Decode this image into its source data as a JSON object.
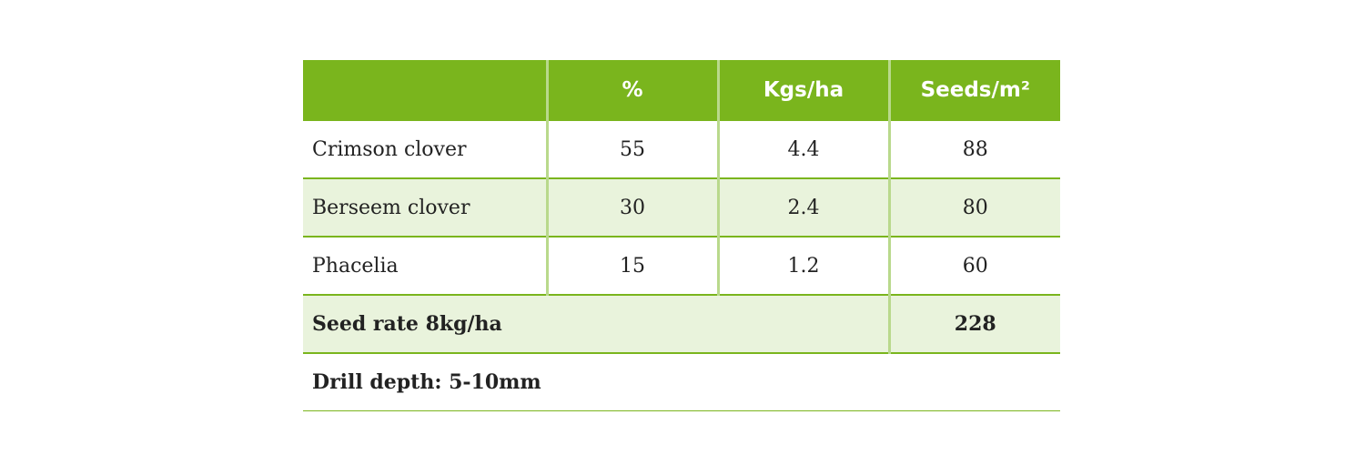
{
  "table": {
    "header": [
      "%",
      "Kgs/ha",
      "Seeds/m²"
    ],
    "rows": [
      [
        "Crimson clover",
        "55",
        "4.4",
        "88"
      ],
      [
        "Berseem clover",
        "30",
        "2.4",
        "80"
      ],
      [
        "Phacelia",
        "15",
        "1.2",
        "60"
      ]
    ],
    "total": {
      "label": "Seed rate 8kg/ha",
      "value": "228"
    },
    "note": "Drill depth: 5-10mm"
  }
}
